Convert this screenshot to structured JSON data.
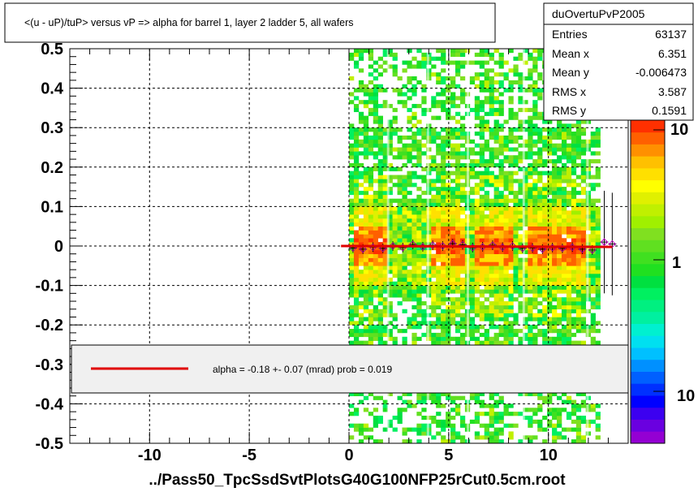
{
  "title": "<(u - uP)/tuP>  versus   vP => alpha for barrel 1, layer 2 ladder 5, all wafers",
  "footer": "../Pass50_TpcSsdSvtPlotsG40G100NFP25rCut0.5cm.root",
  "stats": {
    "name": "duOvertuPvP2005",
    "rows": [
      {
        "label": "Entries",
        "value": "63137"
      },
      {
        "label": "Mean x",
        "value": "6.351"
      },
      {
        "label": "Mean y",
        "value": "-0.006473"
      },
      {
        "label": "RMS x",
        "value": "3.587"
      },
      {
        "label": "RMS y",
        "value": "0.1591"
      }
    ]
  },
  "fit": {
    "text": "alpha =   -0.18 +-  0.07 (mrad) prob = 0.019",
    "line_color": "#e00000"
  },
  "palette": {
    "tick_labels": [
      "10",
      "1",
      "10"
    ],
    "colors": [
      "#9400d3",
      "#6a00e0",
      "#3c00f0",
      "#0000ff",
      "#0030ff",
      "#0060ff",
      "#0090ff",
      "#00c0ff",
      "#00e0f0",
      "#00f0d0",
      "#00f0a0",
      "#00f080",
      "#00f060",
      "#00e040",
      "#20e020",
      "#40e020",
      "#60e020",
      "#80e020",
      "#a0f000",
      "#c0f000",
      "#e0f000",
      "#ffff00",
      "#ffe000",
      "#ffc000",
      "#ff9000",
      "#ff6000",
      "#ff3000"
    ]
  },
  "chart_data": {
    "type": "heatmap",
    "title": "<(u - uP)/tuP>  versus   vP => alpha for barrel 1, layer 2 ladder 5, all wafers",
    "xlabel": "",
    "ylabel": "",
    "xlim": [
      -14,
      14
    ],
    "ylim": [
      -0.5,
      0.5
    ],
    "x_ticks": [
      -10,
      -5,
      0,
      5,
      10
    ],
    "x_tick_labels": [
      "-10",
      "-5",
      "0",
      "5",
      "10"
    ],
    "y_ticks": [
      -0.5,
      -0.4,
      -0.3,
      -0.2,
      -0.1,
      0,
      0.1,
      0.2,
      0.3,
      0.4,
      0.5
    ],
    "y_tick_labels": [
      "-0.5",
      "-0.4",
      "-0.3",
      "-0.2",
      "-0.1",
      "0",
      "0.1",
      "0.2",
      "0.3",
      "0.4",
      "0.5"
    ],
    "grid": true,
    "occupied_x_range": [
      0,
      12.6
    ],
    "dense_bands_x": [
      [
        0.3,
        2.0
      ],
      [
        4.0,
        5.8
      ],
      [
        6.3,
        8.2
      ],
      [
        9.0,
        11.8
      ]
    ],
    "profile_points": {
      "x": [
        0.2,
        0.7,
        1.2,
        1.7,
        2.2,
        2.7,
        3.2,
        3.7,
        4.2,
        4.7,
        5.2,
        5.7,
        6.2,
        6.7,
        7.2,
        7.7,
        8.2,
        8.7,
        9.2,
        9.7,
        10.2,
        10.7,
        11.2,
        11.7,
        12.2,
        12.8,
        13.2
      ],
      "y": [
        -0.005,
        -0.008,
        -0.003,
        -0.006,
        0.0,
        -0.004,
        0.004,
        -0.002,
        0.002,
        0.0,
        0.006,
        0.003,
        -0.004,
        -0.002,
        0.002,
        -0.003,
        0.0,
        -0.006,
        -0.005,
        -0.008,
        -0.004,
        -0.006,
        -0.003,
        -0.008,
        -0.01,
        0.01,
        0.005
      ]
    },
    "fit_line": {
      "slope_mrad": -0.18,
      "error_mrad": 0.07,
      "prob": 0.019,
      "x_range": [
        -0.4,
        13.2
      ]
    }
  }
}
